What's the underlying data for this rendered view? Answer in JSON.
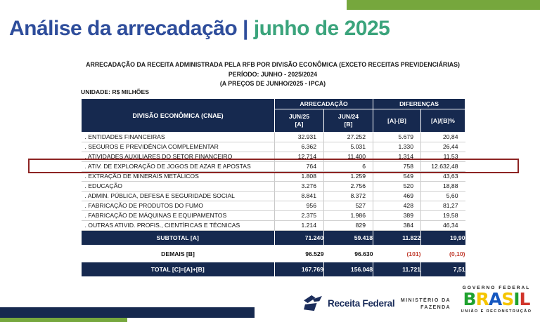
{
  "slide": {
    "title": {
      "main": "Análise da arrecadação |",
      "accent": " junho de 2025"
    },
    "heading": {
      "line1": "ARRECADAÇÃO DA RECEITA ADMINISTRADA PELA RFB POR DIVISÃO ECONÔMICA (EXCETO RECEITAS PREVIDENCIÁRIAS)",
      "line2": "PERÍODO: JUNHO - 2025/2024",
      "line3": "(A PREÇOS DE JUNHO/2025 - IPCA)"
    },
    "unit_label": "UNIDADE: R$ MILHÕES"
  },
  "colors": {
    "table_navy": "#16294f",
    "title_blue": "#2e4d9b",
    "title_green": "#3ba47c",
    "olive_green_bar": "#76a73d",
    "highlight_border_red": "#8d2423",
    "negative_red": "#c0392b"
  },
  "table": {
    "headers": {
      "division": "DIVISÃO ECONÔMICA (CNAE)",
      "group_arrecadacao": "ARRECADAÇÃO",
      "group_diferencas": "DIFERENÇAS",
      "col_a_line1": "JUN/25",
      "col_a_line2": "[A]",
      "col_b_line1": "JUN/24",
      "col_b_line2": "[B]",
      "col_diff": "[A]-[B]",
      "col_pct": "[A]/[B]%"
    },
    "rows": [
      {
        "label": ". ENTIDADES FINANCEIRAS",
        "jun25": "32.931",
        "jun24": "27.252",
        "diff": "5.679",
        "pct": "20,84"
      },
      {
        "label": ". SEGUROS E PREVIDÊNCIA COMPLEMENTAR",
        "jun25": "6.362",
        "jun24": "5.031",
        "diff": "1.330",
        "pct": "26,44"
      },
      {
        "label": ". ATIVIDADES AUXILIARES DO SETOR FINANCEIRO",
        "jun25": "12.714",
        "jun24": "11.400",
        "diff": "1.314",
        "pct": "11,53"
      },
      {
        "label": ". ATIV. DE EXPLORAÇÃO DE JOGOS DE AZAR E APOSTAS",
        "jun25": "764",
        "jun24": "6",
        "diff": "758",
        "pct": "12.632,48",
        "highlighted": true
      },
      {
        "label": ". EXTRAÇÃO DE MINERAIS METÁLICOS",
        "jun25": "1.808",
        "jun24": "1.259",
        "diff": "549",
        "pct": "43,63"
      },
      {
        "label": ". EDUCAÇÃO",
        "jun25": "3.276",
        "jun24": "2.756",
        "diff": "520",
        "pct": "18,88"
      },
      {
        "label": ". ADMIN. PÚBLICA, DEFESA E SEGURIDADE SOCIAL",
        "jun25": "8.841",
        "jun24": "8.372",
        "diff": "469",
        "pct": "5,60"
      },
      {
        "label": ". FABRICAÇÃO DE PRODUTOS DO FUMO",
        "jun25": "956",
        "jun24": "527",
        "diff": "428",
        "pct": "81,27"
      },
      {
        "label": ". FABRICAÇÃO DE MÁQUINAS E EQUIPAMENTOS",
        "jun25": "2.375",
        "jun24": "1.986",
        "diff": "389",
        "pct": "19,58"
      },
      {
        "label": ". OUTRAS ATIVID. PROFIS., CIENTÍFICAS E TÉCNICAS",
        "jun25": "1.214",
        "jun24": "829",
        "diff": "384",
        "pct": "46,34"
      }
    ],
    "summary": {
      "subtotal": {
        "label": "SUBTOTAL [A]",
        "jun25": "71.240",
        "jun24": "59.418",
        "diff": "11.822",
        "pct": "19,90"
      },
      "demais": {
        "label": "DEMAIS [B]",
        "jun25": "96.529",
        "jun24": "96.630",
        "diff": "(101)",
        "pct": "(0,10)"
      },
      "total": {
        "label": "TOTAL [C]=[A]+[B]",
        "jun25": "167.769",
        "jun24": "156.048",
        "diff": "11.721",
        "pct": "7,51"
      }
    }
  },
  "footer": {
    "receita_label": "Receita Federal",
    "ministerio_line1": "MINISTÉRIO DA",
    "ministerio_line2": "FAZENDA",
    "gov_top": "GOVERNO FEDERAL",
    "gov_brand": "BRASIL",
    "gov_brand_colors": [
      "#1fa12e",
      "#f5c500",
      "#1557c0",
      "#f5c500",
      "#1fa12e",
      "#d1342a"
    ],
    "gov_bottom": "UNIÃO E RECONSTRUÇÃO"
  }
}
